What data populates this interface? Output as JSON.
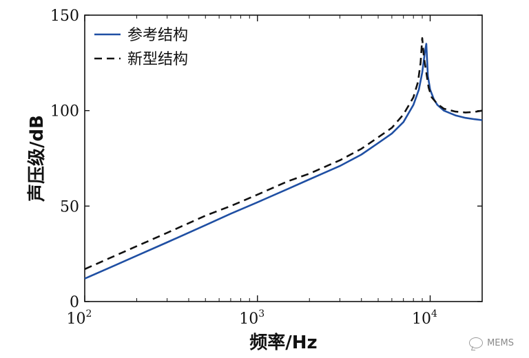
{
  "chart_data": {
    "type": "line",
    "xscale": "log",
    "xlim": [
      100,
      20000
    ],
    "ylim": [
      0,
      150
    ],
    "xlabel": "频率/Hz",
    "ylabel": "声压级/dB",
    "grid": false,
    "legend_placement": "top-left",
    "y_ticks": [
      "0",
      "50",
      "100",
      "150"
    ],
    "x_ticks": [
      {
        "base": "10",
        "exp": "2"
      },
      {
        "base": "10",
        "exp": "3"
      },
      {
        "base": "10",
        "exp": "4"
      }
    ],
    "series": [
      {
        "name": "参考结构",
        "style": "solid",
        "color": "#1f4fa3",
        "x": [
          100,
          150,
          200,
          300,
          500,
          700,
          1000,
          1500,
          2000,
          3000,
          4000,
          5000,
          6000,
          7000,
          8000,
          8600,
          9000,
          9300,
          9500,
          9700,
          10000,
          10500,
          11000,
          12000,
          14000,
          16000,
          18000,
          20000
        ],
        "y": [
          12,
          19,
          24,
          31,
          40,
          46,
          52,
          59,
          64,
          71,
          77,
          83,
          88,
          94,
          103,
          111,
          120,
          130,
          135,
          118,
          111,
          106,
          103,
          100,
          97.5,
          96.2,
          95.5,
          95
        ]
      },
      {
        "name": "新型结构",
        "style": "dashed",
        "color": "#111111",
        "x": [
          100,
          150,
          200,
          300,
          500,
          700,
          1000,
          1500,
          2000,
          3000,
          4000,
          5000,
          6000,
          7000,
          8000,
          8500,
          8800,
          9000,
          9200,
          9500,
          9800,
          10200,
          11000,
          12000,
          14000,
          16000,
          18000,
          20000
        ],
        "y": [
          17,
          24,
          29,
          36,
          45,
          50,
          56,
          63,
          67,
          74,
          80,
          86,
          91,
          98,
          107,
          115,
          125,
          138,
          128,
          120,
          112,
          107,
          103.5,
          101,
          99.5,
          99,
          99.3,
          100
        ]
      }
    ]
  },
  "watermark": {
    "text": "MEMS",
    "icon": "wechat-icon"
  }
}
